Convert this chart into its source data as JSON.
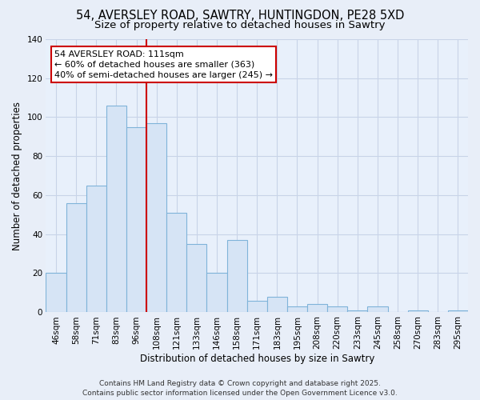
{
  "title": "54, AVERSLEY ROAD, SAWTRY, HUNTINGDON, PE28 5XD",
  "subtitle": "Size of property relative to detached houses in Sawtry",
  "xlabel": "Distribution of detached houses by size in Sawtry",
  "ylabel": "Number of detached properties",
  "categories": [
    "46sqm",
    "58sqm",
    "71sqm",
    "83sqm",
    "96sqm",
    "108sqm",
    "121sqm",
    "133sqm",
    "146sqm",
    "158sqm",
    "171sqm",
    "183sqm",
    "195sqm",
    "208sqm",
    "220sqm",
    "233sqm",
    "245sqm",
    "258sqm",
    "270sqm",
    "283sqm",
    "295sqm"
  ],
  "values": [
    20,
    56,
    65,
    106,
    95,
    97,
    51,
    35,
    20,
    37,
    6,
    8,
    3,
    4,
    3,
    1,
    3,
    0,
    1,
    0,
    1
  ],
  "bar_color": "#d6e4f5",
  "bar_edge_color": "#7fb3d9",
  "vline_x_index": 4.5,
  "vline_color": "#cc0000",
  "annotation_text": "54 AVERSLEY ROAD: 111sqm\n← 60% of detached houses are smaller (363)\n40% of semi-detached houses are larger (245) →",
  "annotation_box_color": "#ffffff",
  "annotation_box_edge": "#cc0000",
  "ylim": [
    0,
    140
  ],
  "yticks": [
    0,
    20,
    40,
    60,
    80,
    100,
    120,
    140
  ],
  "background_color": "#e8eef8",
  "plot_bg_color": "#e8f0fb",
  "grid_color": "#c8d4e8",
  "footer_line1": "Contains HM Land Registry data © Crown copyright and database right 2025.",
  "footer_line2": "Contains public sector information licensed under the Open Government Licence v3.0.",
  "title_fontsize": 10.5,
  "subtitle_fontsize": 9.5,
  "xlabel_fontsize": 8.5,
  "ylabel_fontsize": 8.5,
  "tick_fontsize": 7.5,
  "annotation_fontsize": 8,
  "footer_fontsize": 6.5
}
